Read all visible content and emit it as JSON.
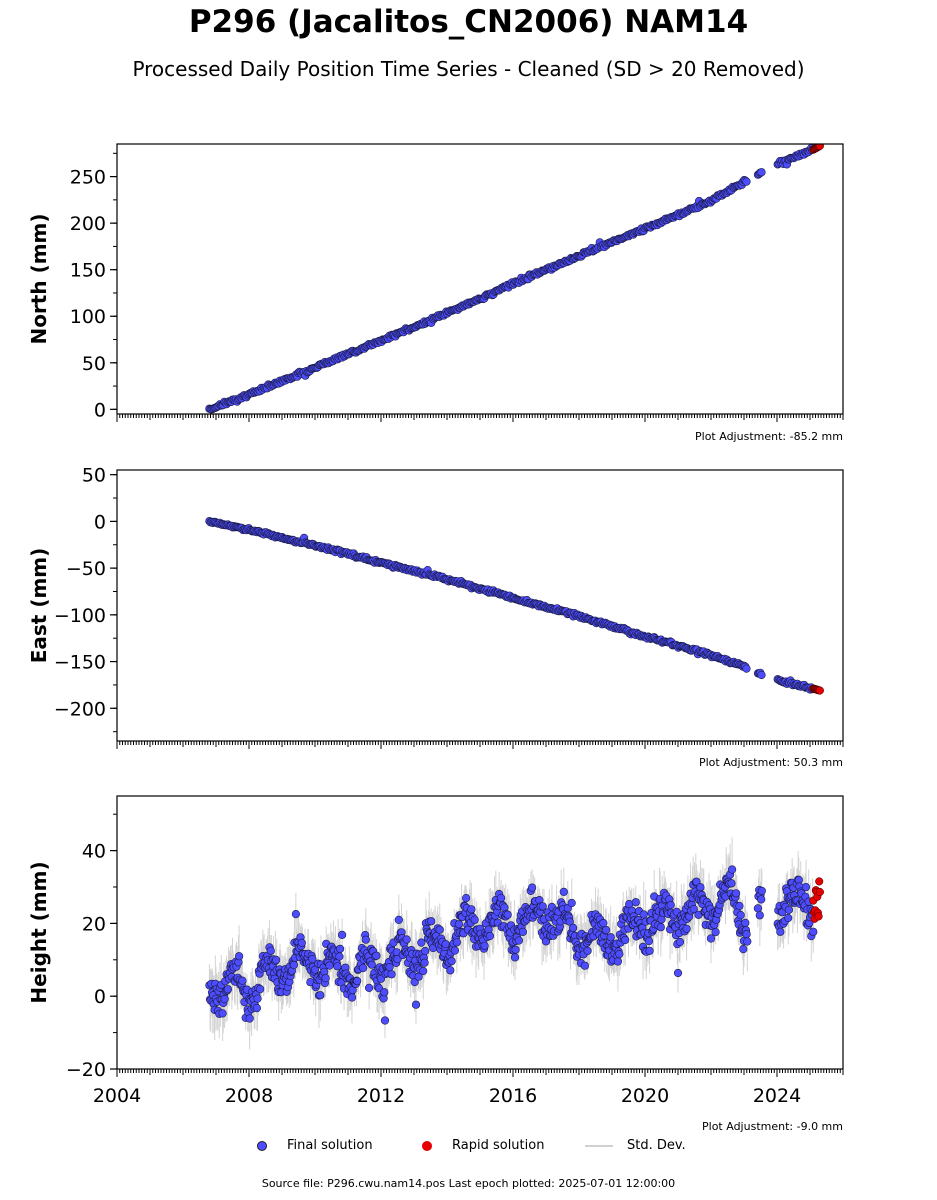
{
  "header": {
    "title": "P296 (Jacalitos_CN2006) NAM14",
    "subtitle": "Processed Daily Position Time Series - Cleaned (SD > 20 Removed)"
  },
  "legend": {
    "final": "Final solution",
    "rapid": "Rapid solution",
    "std": "Std. Dev."
  },
  "footer": "Source file: P296.cwu.nam14.pos  Last epoch plotted: 2025-07-01 12:00:00",
  "colors": {
    "final": "#4d4dff",
    "rapid": "#e60000",
    "std": "#b0b0b0",
    "edge": "#1a1a40"
  },
  "chart_data": [
    {
      "type": "scatter",
      "panel": "north",
      "ylabel": "North (mm)",
      "adjustment": "Plot Adjustment: -85.2 mm",
      "xlim": [
        2004,
        2026
      ],
      "ylim": [
        -5,
        285
      ],
      "yticks": [
        0,
        50,
        100,
        150,
        200,
        250
      ],
      "xticks": [],
      "series": [
        {
          "name": "Final solution",
          "x": [
            2006.8,
            2008,
            2010,
            2012,
            2014,
            2016,
            2018,
            2020,
            2022,
            2023.0,
            2024.0,
            2025.1
          ],
          "y": [
            0,
            16,
            45,
            74,
            103,
            135,
            165,
            194,
            224,
            244,
            263,
            279
          ]
        },
        {
          "name": "Rapid solution",
          "x": [
            2025.1,
            2025.3
          ],
          "y": [
            279,
            283
          ]
        }
      ]
    },
    {
      "type": "scatter",
      "panel": "east",
      "ylabel": "East (mm)",
      "adjustment": "Plot Adjustment: 50.3 mm",
      "xlim": [
        2004,
        2026
      ],
      "ylim": [
        -235,
        55
      ],
      "yticks": [
        50,
        0,
        -50,
        -100,
        -150,
        -200
      ],
      "xticks": [],
      "series": [
        {
          "name": "Final solution",
          "x": [
            2006.8,
            2008,
            2010,
            2012,
            2014,
            2016,
            2018,
            2020,
            2022,
            2023.0,
            2024.0,
            2025.1
          ],
          "y": [
            0,
            -9,
            -26,
            -44,
            -62,
            -82,
            -101,
            -123,
            -143,
            -155,
            -170,
            -179
          ]
        },
        {
          "name": "Rapid solution",
          "x": [
            2025.1,
            2025.3
          ],
          "y": [
            -179,
            -181
          ]
        }
      ]
    },
    {
      "type": "scatter",
      "panel": "height",
      "ylabel": "Height (mm)",
      "adjustment": "Plot Adjustment: -9.0 mm",
      "xlim": [
        2004,
        2026
      ],
      "ylim": [
        -20,
        55
      ],
      "yticks": [
        -20,
        0,
        20,
        40
      ],
      "xticks": [
        2004,
        2008,
        2012,
        2016,
        2020,
        2024
      ],
      "series": [
        {
          "name": "Final solution",
          "x": [
            2006.8,
            2008,
            2009,
            2010,
            2011,
            2012,
            2013,
            2014,
            2015,
            2016,
            2017,
            2018,
            2019,
            2020,
            2021,
            2022,
            2022.7,
            2023.0,
            2024.0,
            2025.1
          ],
          "y": [
            3,
            2,
            8,
            10,
            6,
            8,
            12,
            15,
            20,
            20,
            22,
            17,
            15,
            20,
            22,
            25,
            27,
            20,
            25,
            26
          ]
        },
        {
          "name": "Rapid solution",
          "x": [
            2025.1,
            2025.3
          ],
          "y": [
            26,
            27
          ]
        }
      ]
    }
  ]
}
